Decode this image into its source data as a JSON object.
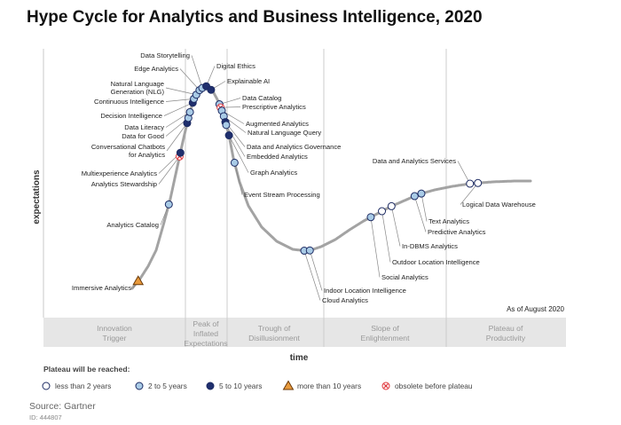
{
  "chart_data": {
    "type": "hype-cycle",
    "title": "Hype Cycle for Analytics and Business Intelligence, 2020",
    "xlabel": "time",
    "ylabel": "expectations",
    "as_of": "As of August 2020",
    "phases": [
      [
        "Innovation",
        "Trigger"
      ],
      [
        "Peak of",
        "Inflated",
        "Expectations"
      ],
      [
        "Trough of",
        "Disillusionment"
      ],
      [
        "Slope of",
        "Enlightenment"
      ],
      [
        "Plateau of",
        "Productivity"
      ]
    ],
    "legend": {
      "title": "Plateau will be reached:",
      "items": [
        {
          "key": "lt2",
          "label": "less than 2 years",
          "marker": "circle",
          "color": "#ffffff"
        },
        {
          "key": "2to5",
          "label": "2 to 5 years",
          "marker": "circle",
          "color": "#a9cbe6"
        },
        {
          "key": "5to10",
          "label": "5 to 10 years",
          "marker": "circle",
          "color": "#1f2f6e"
        },
        {
          "key": "gt10",
          "label": "more than 10 years",
          "marker": "triangle",
          "color": "#e89a3c"
        },
        {
          "key": "obs",
          "label": "obsolete before plateau",
          "marker": "cross",
          "color": "#e0393e"
        }
      ]
    },
    "technologies": [
      {
        "name": "Immersive Analytics",
        "t": 0.015,
        "plateau": "gt10"
      },
      {
        "name": "Analytics Catalog",
        "t": 0.092,
        "plateau": "2to5"
      },
      {
        "name": "Analytics Stewardship",
        "t": 0.119,
        "plateau": "obs"
      },
      {
        "name": "Multiexperience Analytics",
        "t": 0.121,
        "plateau": "5to10"
      },
      {
        "name": "Conversational Chatbots for Analytics",
        "t": 0.138,
        "plateau": "5to10"
      },
      {
        "name": "Data for Good",
        "t": 0.141,
        "plateau": "2to5"
      },
      {
        "name": "Data Literacy",
        "t": 0.145,
        "plateau": "2to5"
      },
      {
        "name": "Decision Intelligence",
        "t": 0.152,
        "plateau": "5to10"
      },
      {
        "name": "Continuous Intelligence",
        "t": 0.155,
        "plateau": "2to5"
      },
      {
        "name": "Natural Language Generation (NLG)",
        "t": 0.161,
        "plateau": "2to5"
      },
      {
        "name": "Edge Analytics",
        "t": 0.169,
        "plateau": "2to5"
      },
      {
        "name": "Data Storytelling",
        "t": 0.176,
        "plateau": "2to5"
      },
      {
        "name": "Digital Ethics",
        "t": 0.186,
        "plateau": "5to10"
      },
      {
        "name": "Explainable AI",
        "t": 0.198,
        "plateau": "5to10"
      },
      {
        "name": "Data Catalog",
        "t": 0.219,
        "plateau": "2to5"
      },
      {
        "name": "Prescriptive Analytics",
        "t": 0.222,
        "plateau": "obs"
      },
      {
        "name": "Augmented Analytics",
        "t": 0.225,
        "plateau": "2to5"
      },
      {
        "name": "Natural Language Query",
        "t": 0.23,
        "plateau": "2to5"
      },
      {
        "name": "Data and Analytics Governance",
        "t": 0.234,
        "plateau": "5to10"
      },
      {
        "name": "Embedded Analytics",
        "t": 0.236,
        "plateau": "2to5"
      },
      {
        "name": "Graph Analytics",
        "t": 0.243,
        "plateau": "5to10"
      },
      {
        "name": "Event Stream Processing",
        "t": 0.257,
        "plateau": "2to5"
      },
      {
        "name": "Cloud Analytics",
        "t": 0.432,
        "plateau": "2to5"
      },
      {
        "name": "Indoor Location Intelligence",
        "t": 0.446,
        "plateau": "2to5"
      },
      {
        "name": "Social Analytics",
        "t": 0.599,
        "plateau": "2to5"
      },
      {
        "name": "Outdoor Location Intelligence",
        "t": 0.627,
        "plateau": "lt2"
      },
      {
        "name": "In-DBMS Analytics",
        "t": 0.651,
        "plateau": "lt2"
      },
      {
        "name": "Predictive Analytics",
        "t": 0.709,
        "plateau": "2to5"
      },
      {
        "name": "Text Analytics",
        "t": 0.726,
        "plateau": "2to5"
      },
      {
        "name": "Data and Analytics Services",
        "t": 0.848,
        "plateau": "lt2"
      },
      {
        "name": "Logical Data Warehouse",
        "t": 0.868,
        "plateau": "lt2"
      }
    ]
  },
  "source": "Source: Gartner",
  "doc_id": "ID: 444807"
}
